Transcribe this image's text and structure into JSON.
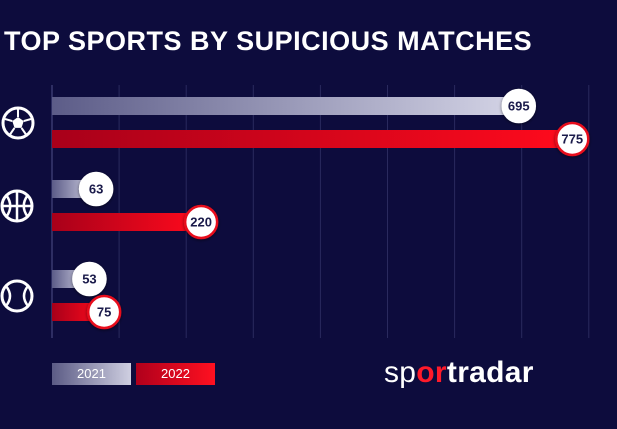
{
  "brand": {
    "part1": "sp",
    "part2": "or",
    "part3": "tradar"
  },
  "chart_data": {
    "type": "bar",
    "orientation": "horizontal",
    "title": "TOP SPORTS BY SUPICIOUS MATCHES",
    "categories": [
      "soccer-icon",
      "basketball-icon",
      "tennis-icon"
    ],
    "series": [
      {
        "name": "2021",
        "values": [
          695,
          63,
          53
        ],
        "color": "#c9c9de"
      },
      {
        "name": "2022",
        "values": [
          775,
          220,
          75
        ],
        "color": "#e8101e"
      }
    ],
    "xlim": [
      0,
      800
    ],
    "grid": true,
    "legend": "bottom-left",
    "data_labels": true
  }
}
